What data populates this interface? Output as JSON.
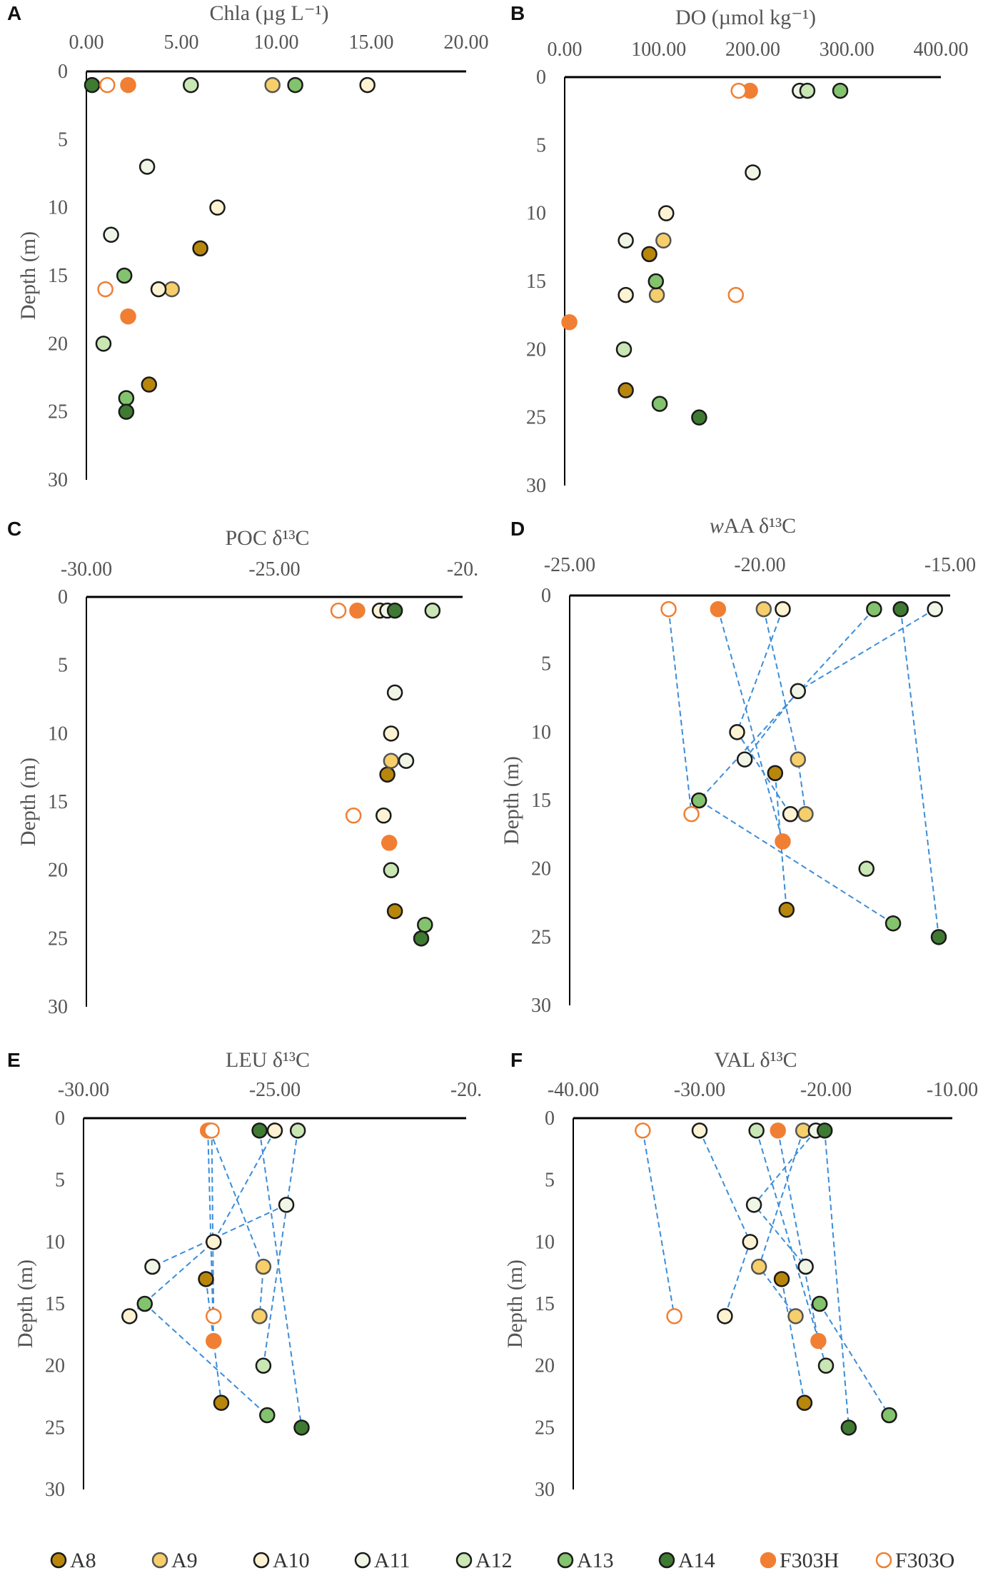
{
  "series": [
    {
      "name": "A8",
      "label": "A8",
      "fill": "#B8860B",
      "stroke": "#1a1a1a",
      "hollow": false
    },
    {
      "name": "A9",
      "label": "A9",
      "fill": "#F7CF6A",
      "stroke": "#555555",
      "hollow": false
    },
    {
      "name": "A10",
      "label": "A10",
      "fill": "#FDF3D2",
      "stroke": "#1a1a1a",
      "hollow": false
    },
    {
      "name": "A11",
      "label": "A11",
      "fill": "#F0F6E6",
      "stroke": "#1a1a1a",
      "hollow": false
    },
    {
      "name": "A12",
      "label": "A12",
      "fill": "#C9E6B5",
      "stroke": "#1a1a1a",
      "hollow": false
    },
    {
      "name": "A13",
      "label": "A13",
      "fill": "#84C36D",
      "stroke": "#1a1a1a",
      "hollow": false
    },
    {
      "name": "A14",
      "label": "A14",
      "fill": "#3F7A32",
      "stroke": "#1a1a1a",
      "hollow": false
    },
    {
      "name": "F303H",
      "label": "F303H",
      "fill": "#F07F33",
      "stroke": "#F07F33",
      "hollow": false
    },
    {
      "name": "F303O",
      "label": "F303O",
      "fill": "#FFFFFF",
      "stroke": "#F07F33",
      "hollow": true
    }
  ],
  "line_color": "#3C8DD8",
  "chart_data": [
    {
      "id": "A",
      "panel_label": "A",
      "type": "scatter",
      "title": "Chla (µg L⁻¹)",
      "xlim": [
        0,
        20
      ],
      "xticks": [
        "0.00",
        "5.00",
        "10.00",
        "15.00",
        "20.00"
      ],
      "ylabel": "Depth (m)",
      "ylim": [
        0,
        30
      ],
      "yticks": [
        "0",
        "5",
        "10",
        "15",
        "20",
        "25",
        "30"
      ],
      "connect": false,
      "points": {
        "A8": [
          [
            6.0,
            13
          ],
          [
            3.3,
            23
          ]
        ],
        "A9": [
          [
            9.8,
            1
          ],
          [
            4.5,
            16
          ]
        ],
        "A10": [
          [
            14.8,
            1
          ],
          [
            6.9,
            10
          ],
          [
            3.8,
            16
          ]
        ],
        "A11": [
          [
            3.2,
            7
          ],
          [
            1.3,
            12
          ]
        ],
        "A12": [
          [
            5.5,
            1
          ],
          [
            0.9,
            20
          ]
        ],
        "A13": [
          [
            11.0,
            1
          ],
          [
            2.0,
            15
          ],
          [
            2.1,
            24
          ]
        ],
        "A14": [
          [
            0.3,
            1
          ],
          [
            2.1,
            25
          ]
        ],
        "F303H": [
          [
            2.2,
            1
          ],
          [
            2.2,
            18
          ]
        ],
        "F303O": [
          [
            1.1,
            1
          ],
          [
            1.0,
            16
          ]
        ]
      }
    },
    {
      "id": "B",
      "panel_label": "B",
      "type": "scatter",
      "title": "DO (µmol kg⁻¹)",
      "xlim": [
        0,
        400
      ],
      "xticks": [
        "0.00",
        "100.00",
        "200.00",
        "300.00",
        "400.00"
      ],
      "ylabel": "",
      "ylim": [
        0,
        30
      ],
      "yticks": [
        "0",
        "5",
        "10",
        "15",
        "20",
        "25",
        "30"
      ],
      "connect": false,
      "points": {
        "A8": [
          [
            90,
            13
          ],
          [
            65,
            23
          ]
        ],
        "A9": [
          [
            105,
            12
          ],
          [
            98,
            16
          ]
        ],
        "A10": [
          [
            108,
            10
          ],
          [
            65,
            16
          ]
        ],
        "A11": [
          [
            250,
            1
          ],
          [
            200,
            7
          ],
          [
            65,
            12
          ]
        ],
        "A12": [
          [
            258,
            1
          ],
          [
            63,
            20
          ]
        ],
        "A13": [
          [
            293,
            1
          ],
          [
            97,
            15
          ],
          [
            101,
            24
          ]
        ],
        "A14": [
          [
            143,
            25
          ]
        ],
        "F303H": [
          [
            197,
            1
          ],
          [
            5,
            18
          ]
        ],
        "F303O": [
          [
            185,
            1
          ],
          [
            182,
            16
          ]
        ]
      }
    },
    {
      "id": "C",
      "panel_label": "C",
      "type": "scatter",
      "title": "POC δ¹³C",
      "xlim": [
        -30,
        -20
      ],
      "xticks": [
        "-30.00",
        "-25.00",
        "-20."
      ],
      "ylabel": "Depth (m)",
      "ylim": [
        0,
        30
      ],
      "yticks": [
        "0",
        "5",
        "10",
        "15",
        "20",
        "25",
        "30"
      ],
      "connect": false,
      "points": {
        "A8": [
          [
            -22.0,
            13
          ],
          [
            -21.8,
            23
          ]
        ],
        "A9": [
          [
            -21.9,
            12
          ]
        ],
        "A10": [
          [
            -22.2,
            1
          ],
          [
            -21.9,
            10
          ],
          [
            -22.1,
            16
          ]
        ],
        "A11": [
          [
            -22.0,
            1
          ],
          [
            -21.8,
            7
          ],
          [
            -21.5,
            12
          ]
        ],
        "A12": [
          [
            -20.8,
            1
          ],
          [
            -21.9,
            20
          ]
        ],
        "A13": [
          [
            -21.0,
            24
          ]
        ],
        "A14": [
          [
            -21.8,
            1
          ],
          [
            -21.1,
            25
          ]
        ],
        "F303H": [
          [
            -22.8,
            1
          ],
          [
            -21.95,
            18
          ]
        ],
        "F303O": [
          [
            -23.3,
            1
          ],
          [
            -22.9,
            16
          ]
        ]
      }
    },
    {
      "id": "D",
      "panel_label": "D",
      "type": "scatter",
      "title": "wAA δ¹³C",
      "title_italic_prefix": "w",
      "title_rest": "AA δ¹³C",
      "xlim": [
        -25,
        -15
      ],
      "xticks": [
        "-25.00",
        "-20.00",
        "-15.00"
      ],
      "ylabel": "Depth (m)",
      "ylim": [
        0,
        30
      ],
      "yticks": [
        "0",
        "5",
        "10",
        "15",
        "20",
        "25",
        "30"
      ],
      "connect": true,
      "points": {
        "A8": [
          [
            -19.6,
            13
          ],
          [
            -19.3,
            23
          ]
        ],
        "A9": [
          [
            -19.9,
            1
          ],
          [
            -19.0,
            12
          ],
          [
            -18.8,
            16
          ]
        ],
        "A10": [
          [
            -19.4,
            1
          ],
          [
            -20.6,
            10
          ],
          [
            -19.2,
            16
          ]
        ],
        "A11": [
          [
            -15.4,
            1
          ],
          [
            -19.0,
            7
          ],
          [
            -20.4,
            12
          ]
        ],
        "A12": [
          [
            -17.2,
            20
          ]
        ],
        "A13": [
          [
            -17.0,
            1
          ],
          [
            -21.6,
            15
          ],
          [
            -16.5,
            24
          ]
        ],
        "A14": [
          [
            -16.3,
            1
          ],
          [
            -15.3,
            25
          ]
        ],
        "F303H": [
          [
            -21.1,
            1
          ],
          [
            -19.4,
            18
          ]
        ],
        "F303O": [
          [
            -22.4,
            1
          ],
          [
            -21.8,
            16
          ]
        ]
      }
    },
    {
      "id": "E",
      "panel_label": "E",
      "type": "scatter",
      "title": "LEU δ¹³C",
      "xlim": [
        -30,
        -20
      ],
      "xticks": [
        "-30.00",
        "-25.00",
        "-20."
      ],
      "ylabel": "Depth (m)",
      "ylim": [
        0,
        30
      ],
      "yticks": [
        "0",
        "5",
        "10",
        "15",
        "20",
        "25",
        "30"
      ],
      "connect": true,
      "points": {
        "A8": [
          [
            -26.8,
            13
          ],
          [
            -26.4,
            23
          ]
        ],
        "A9": [
          [
            -26.7,
            1
          ],
          [
            -25.3,
            12
          ],
          [
            -25.4,
            16
          ]
        ],
        "A10": [
          [
            -25.0,
            1
          ],
          [
            -26.6,
            10
          ],
          [
            -28.8,
            16
          ]
        ],
        "A11": [
          [
            -24.7,
            7
          ],
          [
            -28.2,
            12
          ]
        ],
        "A12": [
          [
            -24.4,
            1
          ],
          [
            -25.3,
            20
          ]
        ],
        "A13": [
          [
            -28.4,
            15
          ],
          [
            -25.2,
            24
          ]
        ],
        "A14": [
          [
            -25.4,
            1
          ],
          [
            -24.3,
            25
          ]
        ],
        "F303H": [
          [
            -26.75,
            1
          ],
          [
            -26.6,
            18
          ]
        ],
        "F303O": [
          [
            -26.65,
            1
          ],
          [
            -26.6,
            16
          ]
        ]
      }
    },
    {
      "id": "F",
      "panel_label": "F",
      "type": "scatter",
      "title": "VAL δ¹³C",
      "xlim": [
        -40,
        -10
      ],
      "xticks": [
        "-40.00",
        "-30.00",
        "-20.00",
        "-10.00"
      ],
      "ylabel": "Depth (m)",
      "ylim": [
        0,
        30
      ],
      "yticks": [
        "0",
        "5",
        "10",
        "15",
        "20",
        "25",
        "30"
      ],
      "connect": true,
      "points": {
        "A8": [
          [
            -23.5,
            13
          ],
          [
            -21.7,
            23
          ]
        ],
        "A9": [
          [
            -21.8,
            1
          ],
          [
            -25.3,
            12
          ],
          [
            -22.4,
            16
          ]
        ],
        "A10": [
          [
            -30.0,
            1
          ],
          [
            -26.0,
            10
          ],
          [
            -28.0,
            16
          ]
        ],
        "A11": [
          [
            -20.8,
            1
          ],
          [
            -25.7,
            7
          ],
          [
            -21.6,
            12
          ]
        ],
        "A12": [
          [
            -25.5,
            1
          ],
          [
            -20.0,
            20
          ]
        ],
        "A13": [
          [
            -20.5,
            15
          ],
          [
            -15.0,
            24
          ]
        ],
        "A14": [
          [
            -20.1,
            1
          ],
          [
            -18.2,
            25
          ]
        ],
        "F303H": [
          [
            -23.8,
            1
          ],
          [
            -20.6,
            18
          ]
        ],
        "F303O": [
          [
            -34.5,
            1
          ],
          [
            -32.0,
            16
          ]
        ]
      }
    }
  ]
}
